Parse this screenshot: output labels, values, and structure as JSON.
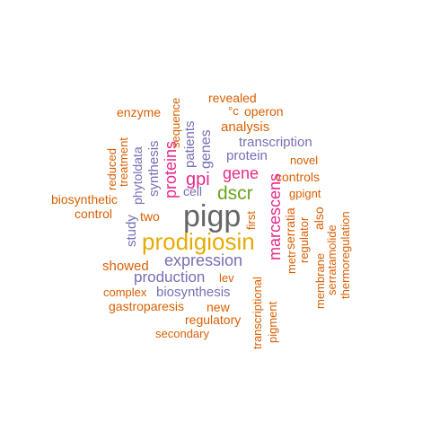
{
  "colors": {
    "orange": "#d95f02",
    "purple": "#7570b3",
    "magenta": "#e7298a",
    "green": "#66a61e",
    "gold": "#e6ab02",
    "gray": "#666666"
  },
  "words": [
    {
      "text": "pigp",
      "color": "gray"
    },
    {
      "text": "prodigiosin",
      "color": "gold"
    },
    {
      "text": "dscr",
      "color": "green"
    },
    {
      "text": "gpi",
      "color": "magenta"
    },
    {
      "text": "gene",
      "color": "magenta"
    },
    {
      "text": "proteins",
      "color": "magenta"
    },
    {
      "text": "marcescens",
      "color": "magenta"
    },
    {
      "text": "expression",
      "color": "purple"
    },
    {
      "text": "production",
      "color": "purple"
    },
    {
      "text": "biosynthesis",
      "color": "purple"
    },
    {
      "text": "genes",
      "color": "purple"
    },
    {
      "text": "patients",
      "color": "purple"
    },
    {
      "text": "synthesis",
      "color": "purple"
    },
    {
      "text": "study",
      "color": "purple"
    },
    {
      "text": "phytoldata",
      "color": "purple"
    },
    {
      "text": "transcription",
      "color": "purple"
    },
    {
      "text": "protein",
      "color": "purple"
    },
    {
      "text": "cell",
      "color": "purple"
    },
    {
      "text": "revealed",
      "color": "orange"
    },
    {
      "text": "°c",
      "color": "orange"
    },
    {
      "text": "operon",
      "color": "orange"
    },
    {
      "text": "enzyme",
      "color": "orange"
    },
    {
      "text": "sequence",
      "color": "orange"
    },
    {
      "text": "analysis",
      "color": "orange"
    },
    {
      "text": "novel",
      "color": "orange"
    },
    {
      "text": "controls",
      "color": "orange"
    },
    {
      "text": "gpignt",
      "color": "orange"
    },
    {
      "text": "treatment",
      "color": "orange"
    },
    {
      "text": "reduced",
      "color": "orange"
    },
    {
      "text": "biosynthetic",
      "color": "orange"
    },
    {
      "text": "control",
      "color": "orange"
    },
    {
      "text": "two",
      "color": "orange"
    },
    {
      "text": "first",
      "color": "orange"
    },
    {
      "text": "also",
      "color": "orange"
    },
    {
      "text": "regulator",
      "color": "orange"
    },
    {
      "text": "serratia",
      "color": "orange"
    },
    {
      "text": "metr",
      "color": "orange"
    },
    {
      "text": "membrane",
      "color": "orange"
    },
    {
      "text": "serratamolide",
      "color": "orange"
    },
    {
      "text": "thermoregulation",
      "color": "orange"
    },
    {
      "text": "showed",
      "color": "orange"
    },
    {
      "text": "lev",
      "color": "orange"
    },
    {
      "text": "complex",
      "color": "orange"
    },
    {
      "text": "gastroparesis",
      "color": "orange"
    },
    {
      "text": "new",
      "color": "orange"
    },
    {
      "text": "regulatory",
      "color": "orange"
    },
    {
      "text": "secondary",
      "color": "orange"
    },
    {
      "text": "transcriptional",
      "color": "orange"
    },
    {
      "text": "pigment",
      "color": "orange"
    }
  ]
}
